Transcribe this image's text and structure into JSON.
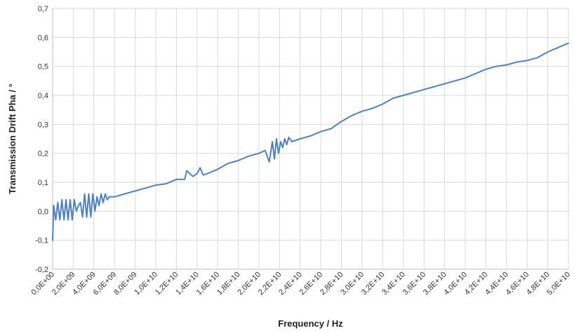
{
  "chart_data": {
    "type": "line",
    "title": "",
    "xlabel": "Frequency / Hz",
    "ylabel": "Transmission Drift Pha / °",
    "xlim": [
      0,
      50000000000
    ],
    "ylim": [
      -0.2,
      0.7
    ],
    "grid": true,
    "legend": "none",
    "y_ticks": [
      {
        "value": -0.2,
        "label": "-0,2"
      },
      {
        "value": -0.1,
        "label": "-0,1"
      },
      {
        "value": 0.0,
        "label": "0,0"
      },
      {
        "value": 0.1,
        "label": "0,1"
      },
      {
        "value": 0.2,
        "label": "0,2"
      },
      {
        "value": 0.3,
        "label": "0,3"
      },
      {
        "value": 0.4,
        "label": "0,4"
      },
      {
        "value": 0.5,
        "label": "0,5"
      },
      {
        "value": 0.6,
        "label": "0,6"
      },
      {
        "value": 0.7,
        "label": "0,7"
      }
    ],
    "x_ticks": [
      {
        "value": 0,
        "label": "0,0E+00"
      },
      {
        "value": 2000000000,
        "label": "2,0E+09"
      },
      {
        "value": 4000000000,
        "label": "4,0E+09"
      },
      {
        "value": 6000000000,
        "label": "6,0E+09"
      },
      {
        "value": 8000000000,
        "label": "8,0E+09"
      },
      {
        "value": 10000000000,
        "label": "1,0E+10"
      },
      {
        "value": 12000000000,
        "label": "1,2E+10"
      },
      {
        "value": 14000000000,
        "label": "1,4E+10"
      },
      {
        "value": 16000000000,
        "label": "1,6E+10"
      },
      {
        "value": 18000000000,
        "label": "1,8E+10"
      },
      {
        "value": 20000000000,
        "label": "2,0E+10"
      },
      {
        "value": 22000000000,
        "label": "2,2E+10"
      },
      {
        "value": 24000000000,
        "label": "2,4E+10"
      },
      {
        "value": 26000000000,
        "label": "2,6E+10"
      },
      {
        "value": 28000000000,
        "label": "2,8E+10"
      },
      {
        "value": 30000000000,
        "label": "3,0E+10"
      },
      {
        "value": 32000000000,
        "label": "3,2E+10"
      },
      {
        "value": 34000000000,
        "label": "3,4E+10"
      },
      {
        "value": 36000000000,
        "label": "3,6E+10"
      },
      {
        "value": 38000000000,
        "label": "3,8E+10"
      },
      {
        "value": 40000000000,
        "label": "4,0E+10"
      },
      {
        "value": 42000000000,
        "label": "4,2E+10"
      },
      {
        "value": 44000000000,
        "label": "4,4E+10"
      },
      {
        "value": 46000000000,
        "label": "4,6E+10"
      },
      {
        "value": 48000000000,
        "label": "4,8E+10"
      },
      {
        "value": 50000000000,
        "label": "5,0E+10"
      }
    ],
    "series": [
      {
        "color": "#4f81bd",
        "x": [
          0,
          100000000,
          300000000,
          500000000,
          700000000,
          900000000,
          1100000000,
          1300000000,
          1500000000,
          1700000000,
          1900000000,
          2100000000,
          2300000000,
          2500000000,
          2700000000,
          2900000000,
          3100000000,
          3300000000,
          3500000000,
          3700000000,
          3900000000,
          4100000000,
          4300000000,
          4500000000,
          4700000000,
          4900000000,
          5100000000,
          5300000000,
          5500000000,
          6000000000,
          7000000000,
          8000000000,
          9000000000,
          10000000000,
          11000000000,
          12000000000,
          12800000000,
          13000000000,
          13600000000,
          14000000000,
          14300000000,
          14600000000,
          15000000000,
          16000000000,
          17000000000,
          18000000000,
          19000000000,
          20000000000,
          20600000000,
          21000000000,
          21300000000,
          21500000000,
          21700000000,
          21900000000,
          22100000000,
          22300000000,
          22500000000,
          22700000000,
          22900000000,
          23200000000,
          24000000000,
          25000000000,
          26000000000,
          27000000000,
          28000000000,
          29000000000,
          30000000000,
          31000000000,
          32000000000,
          33000000000,
          34000000000,
          35000000000,
          36000000000,
          37000000000,
          38000000000,
          39000000000,
          40000000000,
          41000000000,
          42000000000,
          43000000000,
          44000000000,
          45000000000,
          46000000000,
          47000000000,
          48000000000,
          49000000000,
          50000000000
        ],
        "y": [
          -0.1,
          0.02,
          -0.03,
          0.03,
          -0.03,
          0.04,
          -0.03,
          0.04,
          -0.03,
          0.04,
          -0.03,
          0.04,
          0.0,
          0.02,
          0.03,
          -0.02,
          0.06,
          -0.02,
          0.06,
          -0.02,
          0.06,
          0.0,
          0.05,
          0.02,
          0.06,
          0.03,
          0.06,
          0.04,
          0.05,
          0.05,
          0.06,
          0.07,
          0.08,
          0.09,
          0.095,
          0.11,
          0.11,
          0.14,
          0.12,
          0.13,
          0.15,
          0.125,
          0.13,
          0.145,
          0.165,
          0.175,
          0.19,
          0.2,
          0.21,
          0.17,
          0.24,
          0.18,
          0.25,
          0.2,
          0.24,
          0.22,
          0.25,
          0.23,
          0.255,
          0.24,
          0.25,
          0.26,
          0.275,
          0.285,
          0.31,
          0.33,
          0.345,
          0.355,
          0.37,
          0.39,
          0.4,
          0.41,
          0.42,
          0.43,
          0.44,
          0.45,
          0.46,
          0.475,
          0.49,
          0.5,
          0.505,
          0.515,
          0.52,
          0.53,
          0.55,
          0.565,
          0.58
        ]
      }
    ]
  }
}
